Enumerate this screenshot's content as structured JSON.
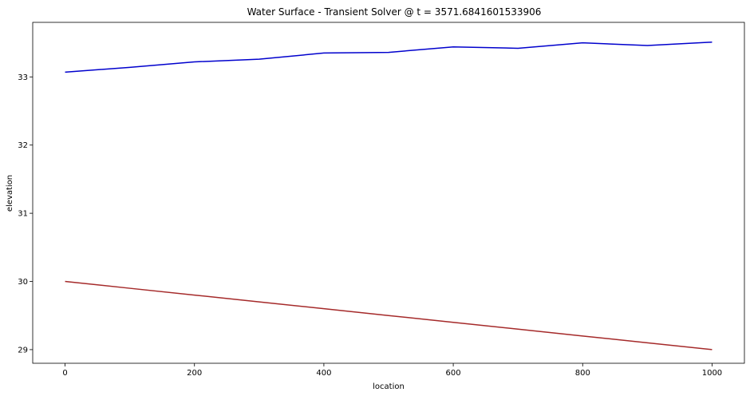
{
  "chart_data": {
    "type": "line",
    "title": "Water Surface - Transient Solver @ t = 3571.6841601533906",
    "xlabel": "location",
    "ylabel": "elevation",
    "xlim": [
      -50,
      1050
    ],
    "ylim": [
      28.8,
      33.8
    ],
    "xticks": [
      0,
      200,
      400,
      600,
      800,
      1000
    ],
    "yticks": [
      29,
      30,
      31,
      32,
      33
    ],
    "grid": false,
    "series": [
      {
        "color": "#0000cd",
        "x": [
          0,
          100,
          200,
          300,
          400,
          500,
          600,
          700,
          800,
          900,
          1000
        ],
        "y": [
          33.07,
          33.14,
          33.22,
          33.26,
          33.35,
          33.36,
          33.44,
          33.42,
          33.5,
          33.46,
          33.51
        ]
      },
      {
        "color": "#a52a2a",
        "x": [
          0,
          100,
          200,
          300,
          400,
          500,
          600,
          700,
          800,
          900,
          1000
        ],
        "y": [
          30.0,
          29.9,
          29.8,
          29.7,
          29.6,
          29.5,
          29.4,
          29.3,
          29.2,
          29.1,
          29.0
        ]
      }
    ]
  }
}
